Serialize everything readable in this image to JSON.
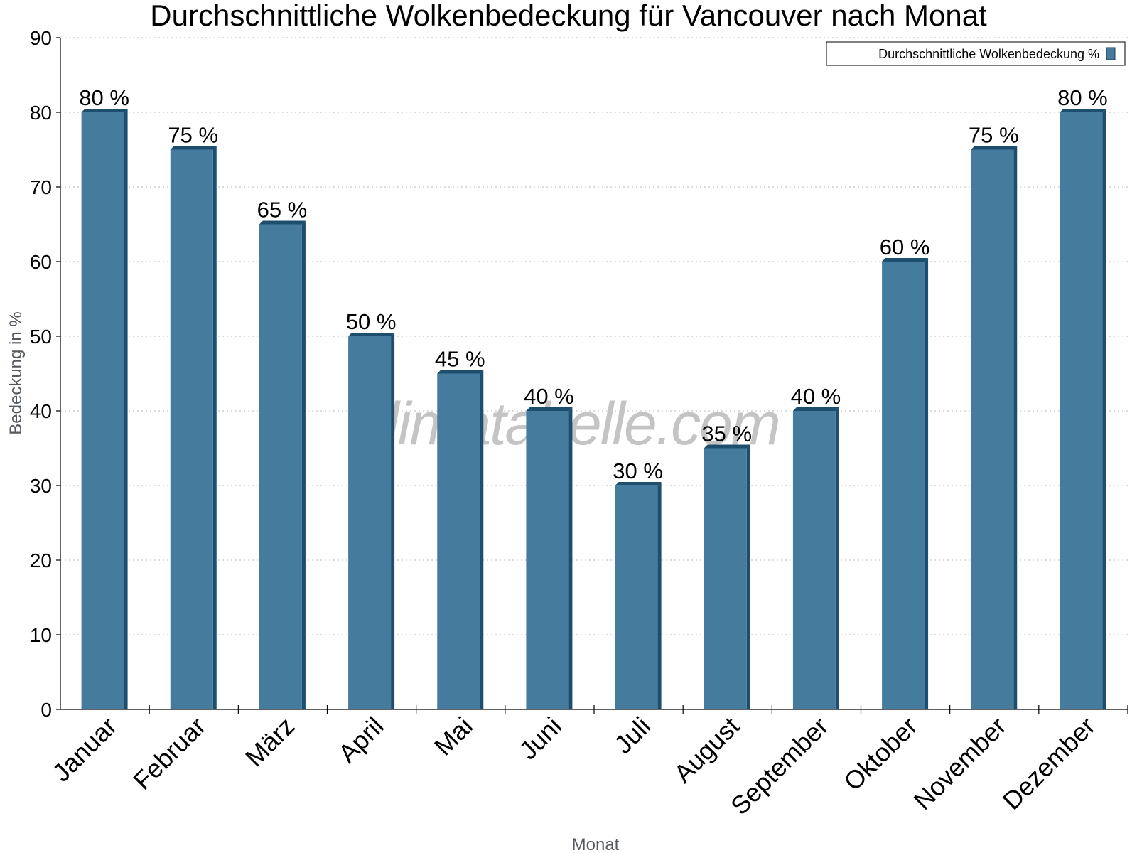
{
  "chart_data": {
    "type": "bar",
    "title": "Durchschnittliche Wolkenbedeckung für Vancouver nach Monat",
    "xlabel": "Monat",
    "ylabel": "Bedeckung in %",
    "ylim": [
      0,
      90
    ],
    "yticks": [
      0,
      10,
      20,
      30,
      40,
      50,
      60,
      70,
      80,
      90
    ],
    "grid": true,
    "legend_position": "top-right",
    "categories": [
      "Januar",
      "Februar",
      "März",
      "April",
      "Mai",
      "Juni",
      "Juli",
      "August",
      "September",
      "Oktober",
      "November",
      "Dezember"
    ],
    "series": [
      {
        "name": "Durchschnittliche Wolkenbedeckung %",
        "values": [
          80,
          75,
          65,
          50,
          45,
          40,
          30,
          35,
          40,
          60,
          75,
          80
        ],
        "labels": [
          "80 %",
          "75 %",
          "65 %",
          "50 %",
          "45 %",
          "40 %",
          "30 %",
          "35 %",
          "40 %",
          "60 %",
          "75 %",
          "80 %"
        ],
        "color": "#457b9d",
        "side_color": "#1d4e6e"
      }
    ],
    "watermark": "klimatabelle.com"
  }
}
